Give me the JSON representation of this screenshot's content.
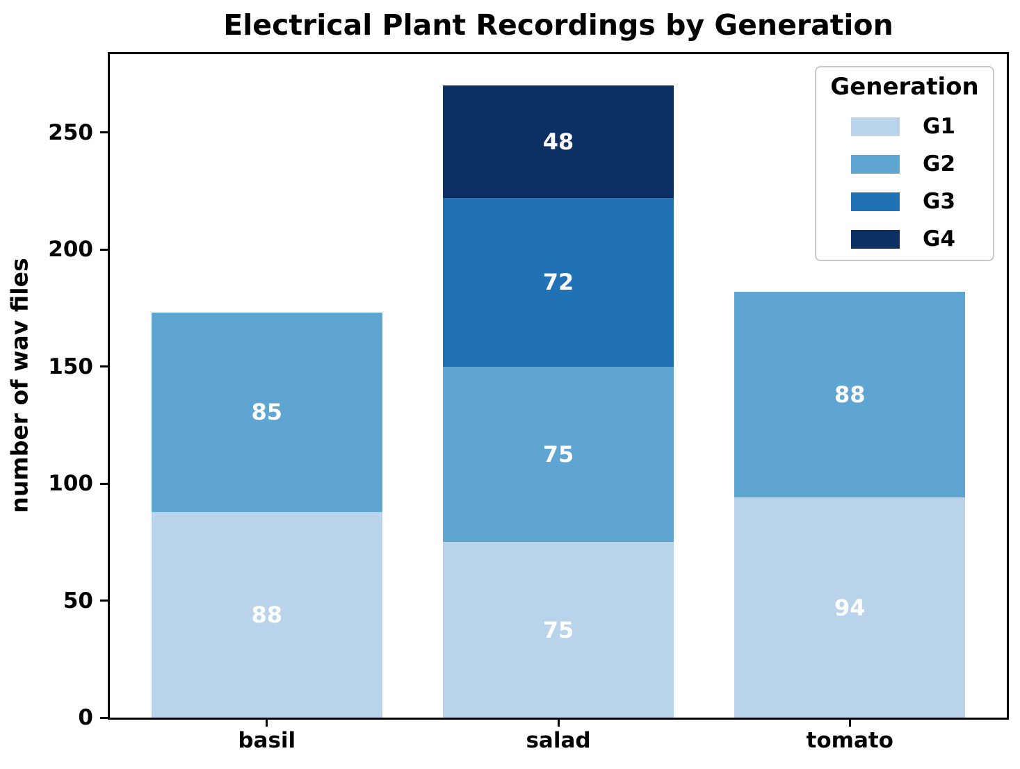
{
  "chart_data": {
    "type": "bar",
    "stacked": true,
    "title": "Electrical Plant Recordings by Generation",
    "xlabel": "",
    "ylabel": "number of wav files",
    "categories": [
      "basil",
      "salad",
      "tomato"
    ],
    "series": [
      {
        "name": "G1",
        "color": "#b9d4ea",
        "values": [
          88,
          75,
          94
        ]
      },
      {
        "name": "G2",
        "color": "#5fa5d1",
        "values": [
          85,
          75,
          88
        ]
      },
      {
        "name": "G3",
        "color": "#2171b5",
        "values": [
          0,
          72,
          0
        ]
      },
      {
        "name": "G4",
        "color": "#0d3064",
        "values": [
          0,
          48,
          0
        ]
      }
    ],
    "bar_label_color": "#ffffff",
    "yticks": [
      0,
      50,
      100,
      150,
      200,
      250
    ],
    "ylim": [
      0,
      283.5
    ],
    "grid": false,
    "legend": {
      "title": "Generation",
      "labels": [
        "G1",
        "G2",
        "G3",
        "G4"
      ],
      "position": "upper right"
    }
  }
}
